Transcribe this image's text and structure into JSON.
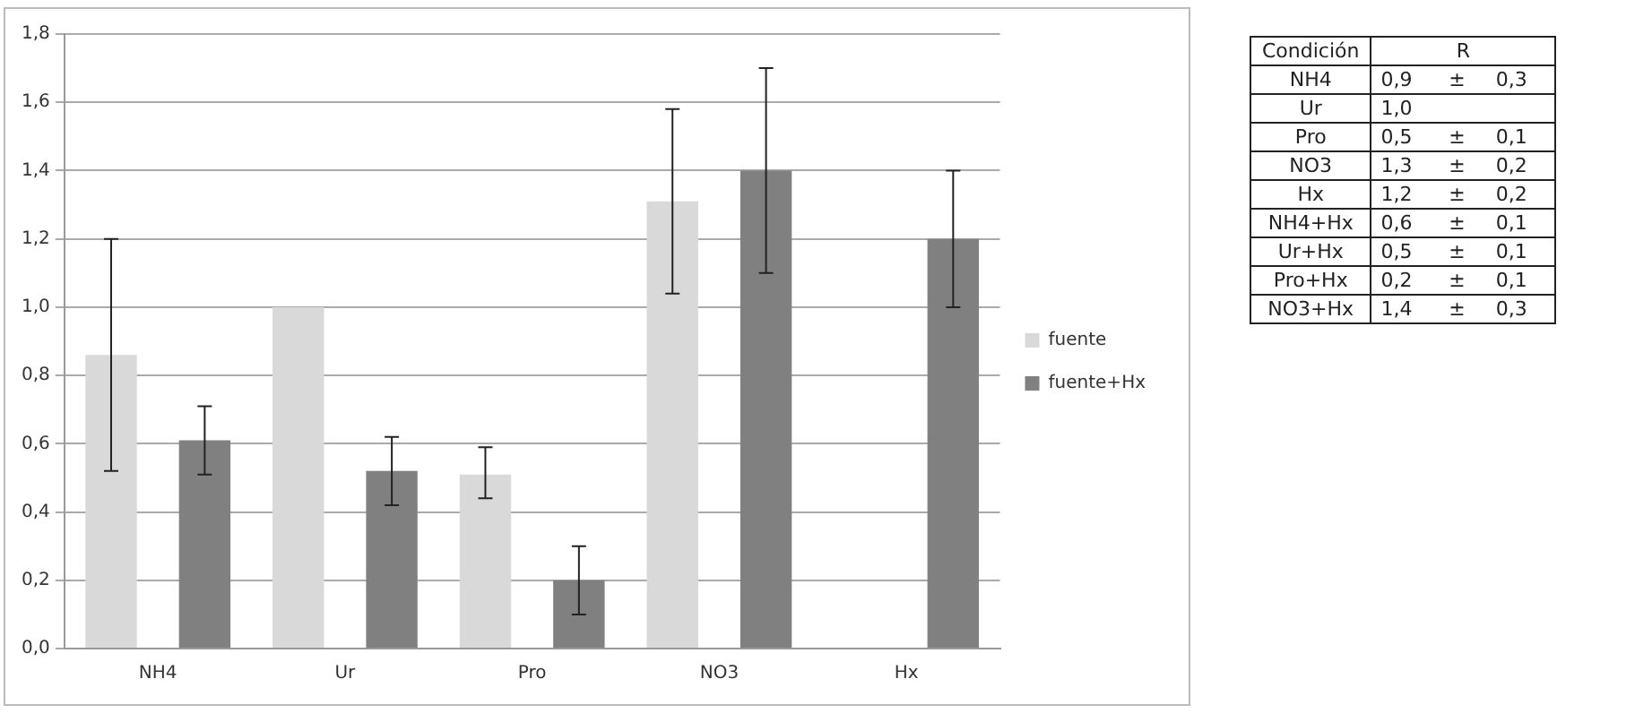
{
  "chart_data": [
    {
      "type": "bar",
      "categories": [
        "NH4",
        "Ur",
        "Pro",
        "NO3",
        "Hx"
      ],
      "series": [
        {
          "name": "fuente",
          "color": "#d9d9d9",
          "values": [
            0.86,
            1.0,
            0.51,
            1.31,
            null
          ],
          "errors": [
            [
              0.52,
              1.2
            ],
            null,
            [
              0.44,
              0.59
            ],
            [
              1.04,
              1.58
            ],
            null
          ]
        },
        {
          "name": "fuente+Hx",
          "color": "#808080",
          "values": [
            0.61,
            0.52,
            0.2,
            1.4,
            1.2
          ],
          "errors": [
            [
              0.51,
              0.71
            ],
            [
              0.42,
              0.62
            ],
            [
              0.1,
              0.3
            ],
            [
              1.1,
              1.7
            ],
            [
              1.0,
              1.4
            ]
          ]
        }
      ],
      "ylim": [
        0,
        1.8
      ],
      "yticks": [
        {
          "value": 0,
          "label": "0,0"
        },
        {
          "value": 0.2,
          "label": "0,2"
        },
        {
          "value": 0.4,
          "label": "0,4"
        },
        {
          "value": 0.6,
          "label": "0,6"
        },
        {
          "value": 0.8,
          "label": "0,8"
        },
        {
          "value": 1.0,
          "label": "1,0"
        },
        {
          "value": 1.2,
          "label": "1,2"
        },
        {
          "value": 1.4,
          "label": "1,4"
        },
        {
          "value": 1.6,
          "label": "1,6"
        },
        {
          "value": 1.8,
          "label": "1,8"
        }
      ],
      "grid": "y",
      "legend": "right"
    },
    {
      "type": "other",
      "xlabel": "Condición",
      "ylabel": "R",
      "categories": [
        "NH4",
        "Ur",
        "Pro",
        "NO3",
        "Hx",
        "NH4+Hx",
        "Ur+Hx",
        "Pro+Hx",
        "NO3+Hx"
      ],
      "value_labels": [
        "0,9 ± 0,3",
        "1,0",
        "0,5 ± 0,1",
        "1,3 ± 0,2",
        "1,2 ± 0,2",
        "0,6 ± 0,1",
        "0,5 ± 0,1",
        "0,2 ± 0,1",
        "1,4 ± 0,3"
      ]
    }
  ]
}
